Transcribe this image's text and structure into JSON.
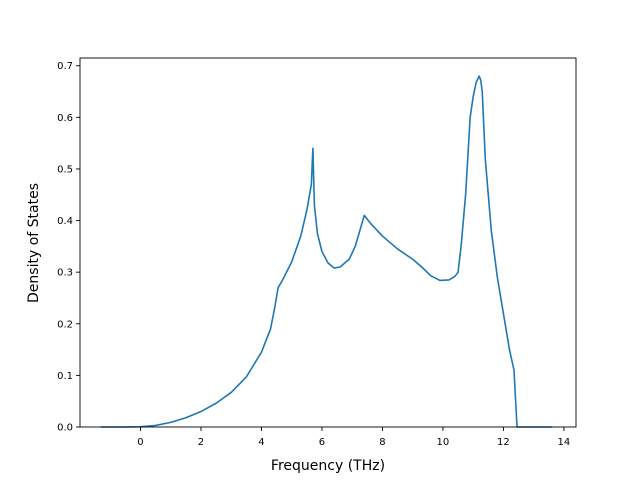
{
  "chart_data": {
    "type": "line",
    "title": "",
    "xlabel": "Frequency (THz)",
    "ylabel": "Density of States",
    "xlim": [
      -2.0,
      14.4
    ],
    "ylim": [
      0.0,
      0.715
    ],
    "xticks": [
      0,
      2,
      4,
      6,
      8,
      10,
      12,
      14
    ],
    "yticks": [
      0.0,
      0.1,
      0.2,
      0.3,
      0.4,
      0.5,
      0.6,
      0.7
    ],
    "grid": false,
    "legend": "none",
    "series": [
      {
        "color": "#1f77b4",
        "x": [
          -1.3,
          -0.5,
          0.0,
          0.5,
          1.0,
          1.5,
          2.0,
          2.5,
          3.0,
          3.5,
          4.0,
          4.3,
          4.45,
          4.55,
          4.7,
          5.0,
          5.3,
          5.5,
          5.65,
          5.7,
          5.75,
          5.85,
          6.0,
          6.2,
          6.4,
          6.6,
          6.9,
          7.1,
          7.25,
          7.4,
          7.6,
          8.0,
          8.5,
          9.0,
          9.3,
          9.6,
          9.9,
          10.2,
          10.4,
          10.5,
          10.6,
          10.75,
          10.9,
          11.0,
          11.1,
          11.2,
          11.25,
          11.3,
          11.4,
          11.6,
          11.8,
          12.0,
          12.2,
          12.35,
          12.45,
          12.6,
          13.0,
          13.6
        ],
        "y": [
          0.0,
          0.0,
          0.0005,
          0.003,
          0.009,
          0.018,
          0.03,
          0.046,
          0.067,
          0.097,
          0.145,
          0.19,
          0.235,
          0.27,
          0.285,
          0.32,
          0.37,
          0.42,
          0.47,
          0.54,
          0.43,
          0.375,
          0.34,
          0.318,
          0.308,
          0.31,
          0.325,
          0.35,
          0.38,
          0.41,
          0.395,
          0.37,
          0.345,
          0.325,
          0.31,
          0.293,
          0.284,
          0.285,
          0.292,
          0.3,
          0.35,
          0.45,
          0.6,
          0.64,
          0.668,
          0.68,
          0.672,
          0.65,
          0.52,
          0.38,
          0.29,
          0.22,
          0.15,
          0.11,
          0.0,
          0.0,
          0.0,
          0.0
        ]
      }
    ]
  }
}
